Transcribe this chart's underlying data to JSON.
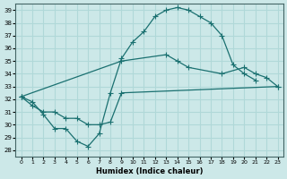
{
  "xlabel": "Humidex (Indice chaleur)",
  "background_color": "#cce8e8",
  "grid_color": "#b0d8d8",
  "line_color": "#1a7070",
  "xlim": [
    -0.5,
    23.5
  ],
  "ylim": [
    27.5,
    39.5
  ],
  "xticks": [
    0,
    1,
    2,
    3,
    4,
    5,
    6,
    7,
    8,
    9,
    10,
    11,
    12,
    13,
    14,
    15,
    16,
    17,
    18,
    19,
    20,
    21,
    22,
    23
  ],
  "yticks": [
    28,
    29,
    30,
    31,
    32,
    33,
    34,
    35,
    36,
    37,
    38,
    39
  ],
  "curve1_x": [
    0,
    1,
    2,
    3,
    4,
    5,
    6,
    7,
    8,
    9,
    10,
    11,
    12,
    13,
    14,
    15,
    16,
    17,
    18,
    19,
    20,
    21
  ],
  "curve1_y": [
    32.2,
    31.8,
    30.8,
    29.7,
    29.7,
    28.7,
    28.3,
    29.3,
    32.5,
    35.2,
    36.5,
    37.3,
    38.5,
    39.0,
    39.2,
    39.0,
    38.5,
    38.0,
    37.0,
    34.7,
    34.0,
    33.5
  ],
  "curve2_x": [
    0,
    9,
    13,
    14,
    15,
    18,
    20,
    21,
    22,
    23
  ],
  "curve2_y": [
    32.2,
    35.0,
    35.5,
    35.0,
    34.5,
    34.0,
    34.5,
    34.0,
    33.7,
    33.0
  ],
  "curve3_x": [
    0,
    1,
    2,
    3,
    4,
    5,
    6,
    7,
    8,
    9,
    23
  ],
  "curve3_y": [
    32.2,
    31.5,
    31.0,
    31.0,
    30.5,
    30.5,
    30.0,
    30.0,
    30.2,
    32.5,
    33.0
  ]
}
